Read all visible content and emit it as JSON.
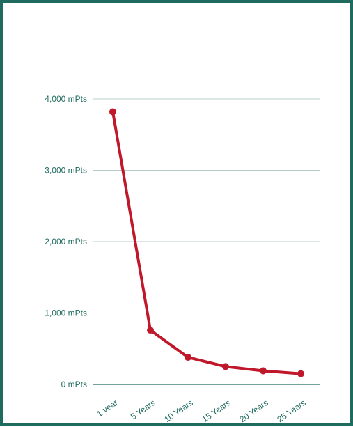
{
  "colors": {
    "frame": "#1f6b5f",
    "grid": "#b9ccc7",
    "axis": "#1f6b5f",
    "series": "#c0172b",
    "tick_text": "#1f6b5f"
  },
  "chart_data": {
    "type": "line",
    "title": "",
    "xlabel": "",
    "ylabel": "",
    "categories": [
      "1 year",
      "5 Years",
      "10 Years",
      "15 Years",
      "20 Years",
      "25 Years"
    ],
    "y_ticks": [
      {
        "value": 0,
        "label": "0 mPts"
      },
      {
        "value": 1000,
        "label": "1,000 mPts"
      },
      {
        "value": 2000,
        "label": "2,000 mPts"
      },
      {
        "value": 3000,
        "label": "3,000 mPts"
      },
      {
        "value": 4000,
        "label": "4,000 mPts"
      }
    ],
    "ylim": [
      0,
      4000
    ],
    "grid": true,
    "legend": "none",
    "series": [
      {
        "values": [
          3820,
          760,
          380,
          250,
          190,
          150
        ]
      }
    ]
  }
}
